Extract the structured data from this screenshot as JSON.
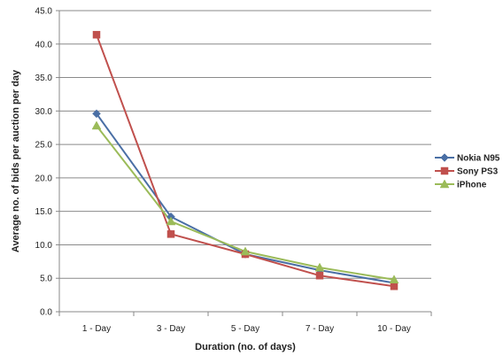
{
  "chart_data": {
    "type": "line",
    "title": "",
    "xlabel": "Duration (no. of days)",
    "ylabel": "Average no. of bids per auction per day",
    "categories": [
      "1 - Day",
      "3 - Day",
      "5 - Day",
      "7 - Day",
      "10 - Day"
    ],
    "ylim": [
      0,
      45
    ],
    "yticks": [
      "0.0",
      "5.0",
      "10.0",
      "15.0",
      "20.0",
      "25.0",
      "30.0",
      "35.0",
      "40.0",
      "45.0"
    ],
    "grid": true,
    "legend_position": "right",
    "series": [
      {
        "name": "Nokia N95",
        "color": "#4a6fa5",
        "marker": "diamond",
        "values": [
          29.6,
          14.2,
          8.6,
          6.2,
          4.3
        ]
      },
      {
        "name": "Sony PS3",
        "color": "#c0504d",
        "marker": "square",
        "values": [
          41.4,
          11.6,
          8.6,
          5.4,
          3.8
        ]
      },
      {
        "name": "iPhone",
        "color": "#9bbb59",
        "marker": "triangle",
        "values": [
          27.8,
          13.5,
          9.0,
          6.6,
          4.8
        ]
      }
    ]
  }
}
